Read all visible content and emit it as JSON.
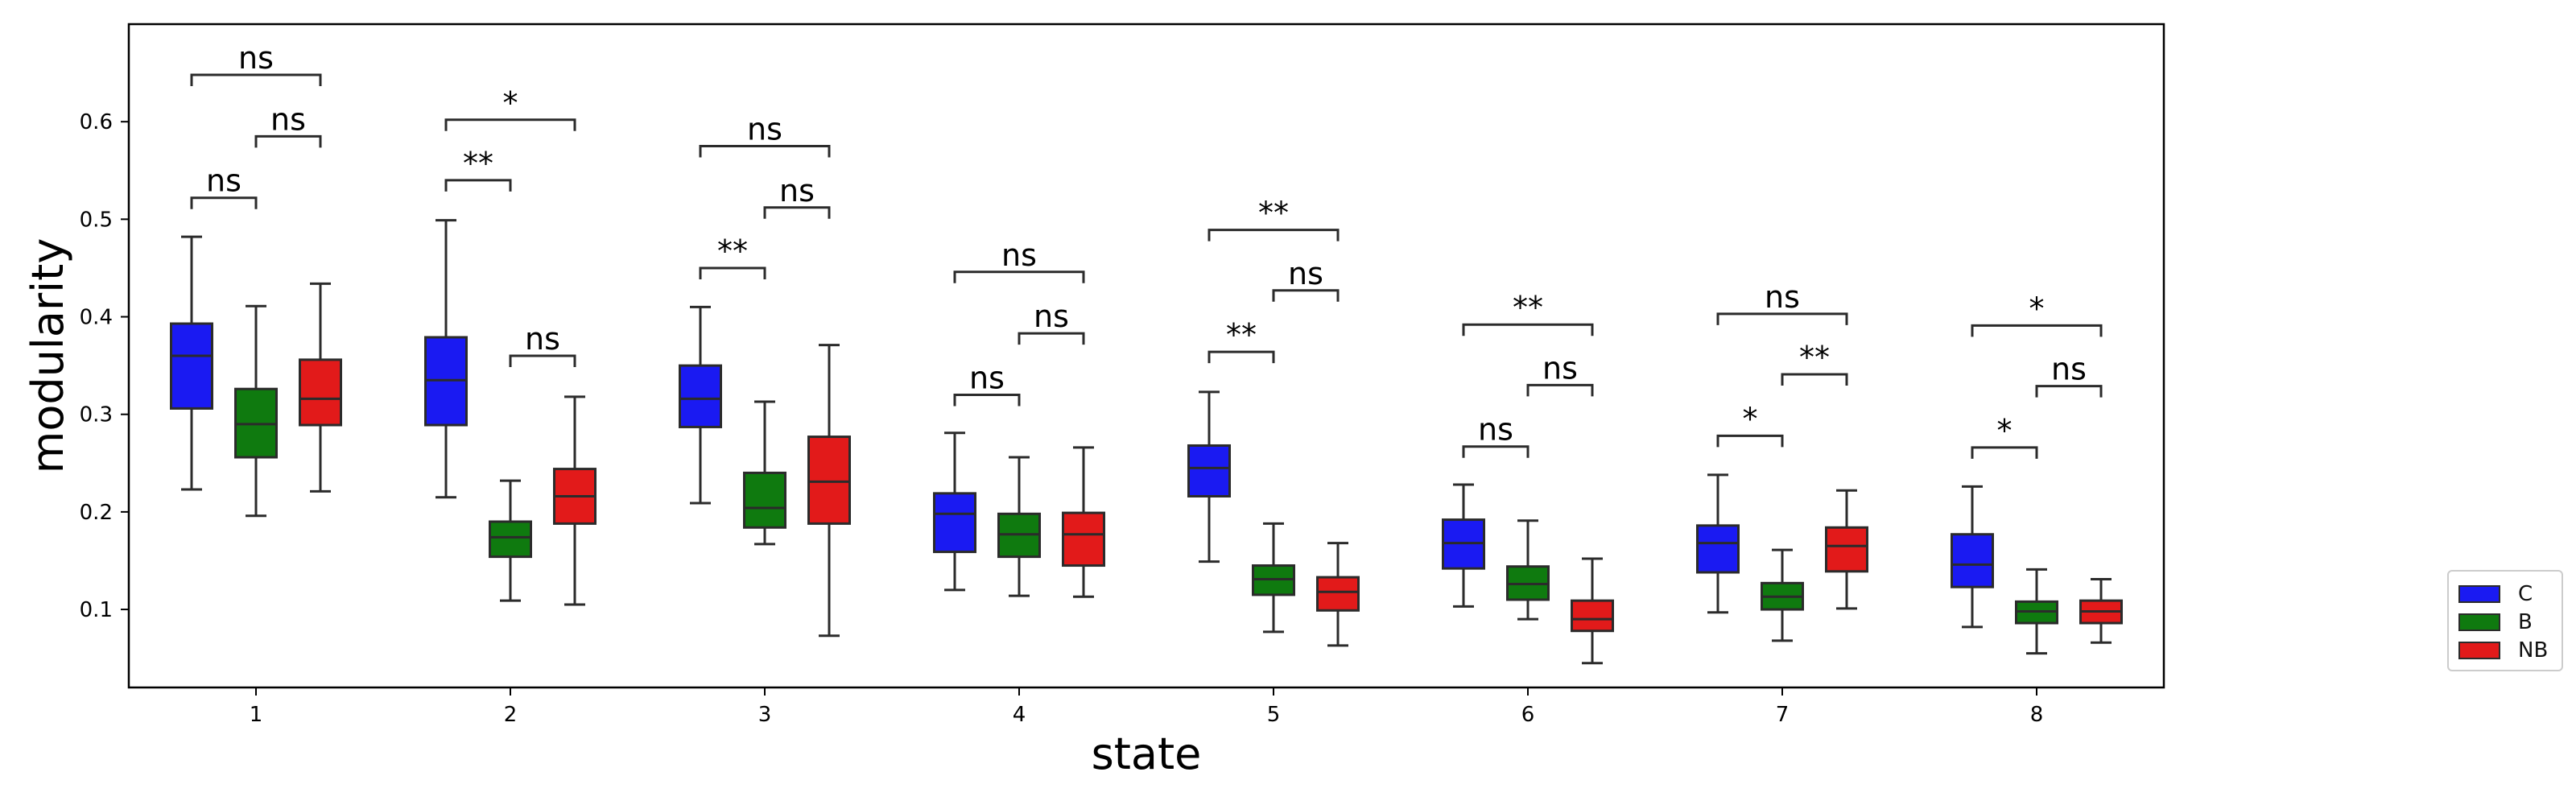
{
  "chart_data": {
    "type": "box",
    "xlabel": "state",
    "ylabel": "modularity",
    "categories": [
      "1",
      "2",
      "3",
      "4",
      "5",
      "6",
      "7",
      "8"
    ],
    "ylim": [
      0.02,
      0.7
    ],
    "yticks": [
      0.1,
      0.2,
      0.3,
      0.4,
      0.5,
      0.6
    ],
    "ytick_labels": [
      "0.1",
      "0.2",
      "0.3",
      "0.4",
      "0.5",
      "0.6"
    ],
    "grid": false,
    "legend_placement": "outside-right",
    "series": [
      {
        "name": "C",
        "color": "#1a1af2",
        "boxes": [
          {
            "whislo": 0.223,
            "q1": 0.306,
            "med": 0.36,
            "q3": 0.393,
            "whishi": 0.482
          },
          {
            "whislo": 0.215,
            "q1": 0.289,
            "med": 0.335,
            "q3": 0.379,
            "whishi": 0.499
          },
          {
            "whislo": 0.209,
            "q1": 0.287,
            "med": 0.316,
            "q3": 0.35,
            "whishi": 0.41
          },
          {
            "whislo": 0.12,
            "q1": 0.159,
            "med": 0.198,
            "q3": 0.219,
            "whishi": 0.281
          },
          {
            "whislo": 0.149,
            "q1": 0.216,
            "med": 0.245,
            "q3": 0.268,
            "whishi": 0.323
          },
          {
            "whislo": 0.103,
            "q1": 0.142,
            "med": 0.168,
            "q3": 0.192,
            "whishi": 0.228
          },
          {
            "whislo": 0.097,
            "q1": 0.138,
            "med": 0.168,
            "q3": 0.186,
            "whishi": 0.238
          },
          {
            "whislo": 0.082,
            "q1": 0.123,
            "med": 0.146,
            "q3": 0.177,
            "whishi": 0.226
          }
        ]
      },
      {
        "name": "B",
        "color": "#0f7a0f",
        "boxes": [
          {
            "whislo": 0.196,
            "q1": 0.256,
            "med": 0.29,
            "q3": 0.326,
            "whishi": 0.411
          },
          {
            "whislo": 0.109,
            "q1": 0.154,
            "med": 0.174,
            "q3": 0.19,
            "whishi": 0.232
          },
          {
            "whislo": 0.167,
            "q1": 0.184,
            "med": 0.204,
            "q3": 0.24,
            "whishi": 0.313
          },
          {
            "whislo": 0.114,
            "q1": 0.154,
            "med": 0.177,
            "q3": 0.198,
            "whishi": 0.256
          },
          {
            "whislo": 0.077,
            "q1": 0.115,
            "med": 0.131,
            "q3": 0.145,
            "whishi": 0.188
          },
          {
            "whislo": 0.09,
            "q1": 0.11,
            "med": 0.126,
            "q3": 0.144,
            "whishi": 0.191
          },
          {
            "whislo": 0.068,
            "q1": 0.1,
            "med": 0.113,
            "q3": 0.127,
            "whishi": 0.161
          },
          {
            "whislo": 0.055,
            "q1": 0.086,
            "med": 0.098,
            "q3": 0.108,
            "whishi": 0.141
          }
        ]
      },
      {
        "name": "NB",
        "color": "#e21a1a",
        "boxes": [
          {
            "whislo": 0.221,
            "q1": 0.289,
            "med": 0.316,
            "q3": 0.356,
            "whishi": 0.434
          },
          {
            "whislo": 0.105,
            "q1": 0.188,
            "med": 0.216,
            "q3": 0.244,
            "whishi": 0.318
          },
          {
            "whislo": 0.073,
            "q1": 0.188,
            "med": 0.231,
            "q3": 0.277,
            "whishi": 0.371
          },
          {
            "whislo": 0.113,
            "q1": 0.145,
            "med": 0.177,
            "q3": 0.199,
            "whishi": 0.266
          },
          {
            "whislo": 0.063,
            "q1": 0.099,
            "med": 0.118,
            "q3": 0.133,
            "whishi": 0.168
          },
          {
            "whislo": 0.045,
            "q1": 0.078,
            "med": 0.09,
            "q3": 0.109,
            "whishi": 0.152
          },
          {
            "whislo": 0.101,
            "q1": 0.139,
            "med": 0.165,
            "q3": 0.184,
            "whishi": 0.222
          },
          {
            "whislo": 0.066,
            "q1": 0.086,
            "med": 0.098,
            "q3": 0.109,
            "whishi": 0.131
          }
        ]
      }
    ],
    "annotations": [
      {
        "state": "1",
        "between": [
          "C",
          "B"
        ],
        "y": 0.522,
        "label": "ns"
      },
      {
        "state": "1",
        "between": [
          "B",
          "NB"
        ],
        "y": 0.585,
        "label": "ns"
      },
      {
        "state": "1",
        "between": [
          "C",
          "NB"
        ],
        "y": 0.648,
        "label": "ns"
      },
      {
        "state": "2",
        "between": [
          "C",
          "B"
        ],
        "y": 0.54,
        "label": "**"
      },
      {
        "state": "2",
        "between": [
          "B",
          "NB"
        ],
        "y": 0.36,
        "label": "ns"
      },
      {
        "state": "2",
        "between": [
          "C",
          "NB"
        ],
        "y": 0.602,
        "label": "*"
      },
      {
        "state": "3",
        "between": [
          "C",
          "B"
        ],
        "y": 0.45,
        "label": "**"
      },
      {
        "state": "3",
        "between": [
          "B",
          "NB"
        ],
        "y": 0.512,
        "label": "ns"
      },
      {
        "state": "3",
        "between": [
          "C",
          "NB"
        ],
        "y": 0.575,
        "label": "ns"
      },
      {
        "state": "4",
        "between": [
          "C",
          "B"
        ],
        "y": 0.32,
        "label": "ns"
      },
      {
        "state": "4",
        "between": [
          "B",
          "NB"
        ],
        "y": 0.383,
        "label": "ns"
      },
      {
        "state": "4",
        "between": [
          "C",
          "NB"
        ],
        "y": 0.446,
        "label": "ns"
      },
      {
        "state": "5",
        "between": [
          "C",
          "B"
        ],
        "y": 0.364,
        "label": "**"
      },
      {
        "state": "5",
        "between": [
          "B",
          "NB"
        ],
        "y": 0.427,
        "label": "ns"
      },
      {
        "state": "5",
        "between": [
          "C",
          "NB"
        ],
        "y": 0.489,
        "label": "**"
      },
      {
        "state": "6",
        "between": [
          "C",
          "B"
        ],
        "y": 0.267,
        "label": "ns"
      },
      {
        "state": "6",
        "between": [
          "B",
          "NB"
        ],
        "y": 0.33,
        "label": "ns"
      },
      {
        "state": "6",
        "between": [
          "C",
          "NB"
        ],
        "y": 0.392,
        "label": "**"
      },
      {
        "state": "7",
        "between": [
          "C",
          "B"
        ],
        "y": 0.278,
        "label": "*"
      },
      {
        "state": "7",
        "between": [
          "B",
          "NB"
        ],
        "y": 0.341,
        "label": "**"
      },
      {
        "state": "7",
        "between": [
          "C",
          "NB"
        ],
        "y": 0.403,
        "label": "ns"
      },
      {
        "state": "8",
        "between": [
          "C",
          "B"
        ],
        "y": 0.266,
        "label": "*"
      },
      {
        "state": "8",
        "between": [
          "B",
          "NB"
        ],
        "y": 0.329,
        "label": "ns"
      },
      {
        "state": "8",
        "between": [
          "C",
          "NB"
        ],
        "y": 0.391,
        "label": "*"
      }
    ]
  },
  "legend": {
    "items": [
      {
        "label": "C",
        "color": "#1a1af2"
      },
      {
        "label": "B",
        "color": "#0f7a0f"
      },
      {
        "label": "NB",
        "color": "#e21a1a"
      }
    ]
  }
}
